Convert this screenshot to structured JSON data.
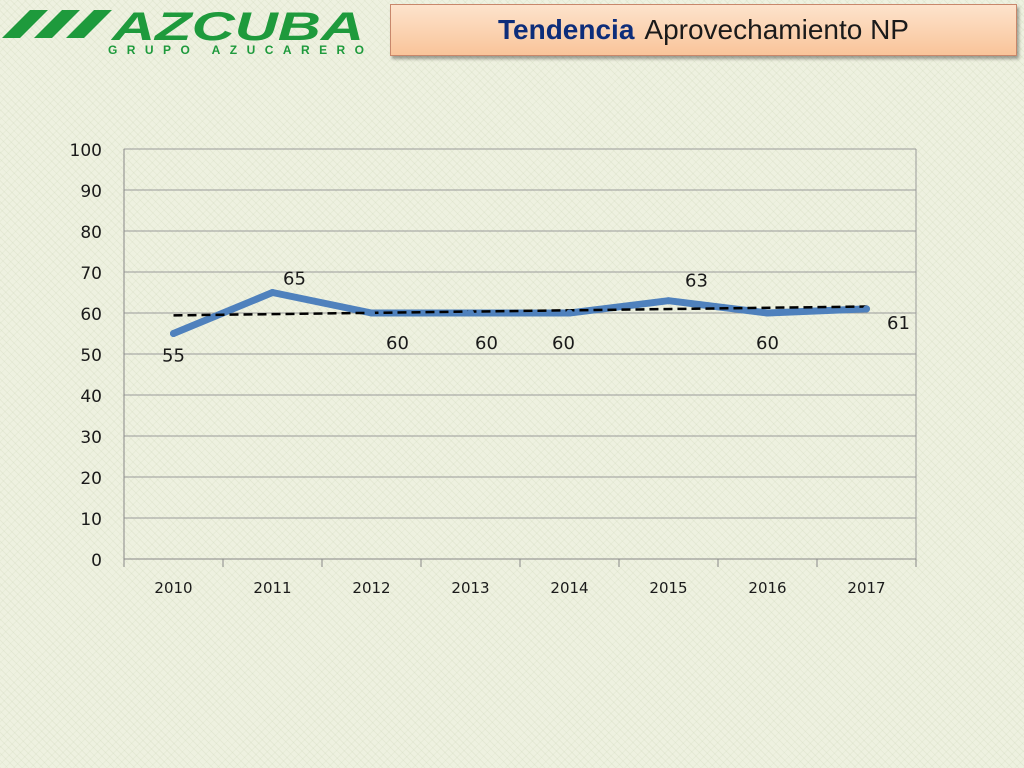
{
  "header": {
    "logo_text": "AZCUBA",
    "logo_subtitle": "GRUPO AZUCARERO",
    "title_bold": "Tendencia",
    "title_rest": "Aprovechamiento NP"
  },
  "colors": {
    "series": "#4f81bd",
    "trendline": "#000000",
    "logo_green": "#1e9a3c",
    "title_bold": "#0d2d7a"
  },
  "chart_data": {
    "type": "line",
    "categories": [
      "2010",
      "2011",
      "2012",
      "2013",
      "2014",
      "2015",
      "2016",
      "2017"
    ],
    "series": [
      {
        "values": [
          55,
          65,
          60,
          60,
          60,
          63,
          60,
          61
        ],
        "data_labels": [
          "55",
          "65",
          "60",
          "60",
          "60",
          "63",
          "60",
          "61"
        ]
      }
    ],
    "trendline": {
      "type": "linear",
      "style": "dashed"
    },
    "ylim": [
      0,
      100
    ],
    "yticks": [
      0,
      10,
      20,
      30,
      40,
      50,
      60,
      70,
      80,
      90,
      100
    ],
    "grid": true
  }
}
